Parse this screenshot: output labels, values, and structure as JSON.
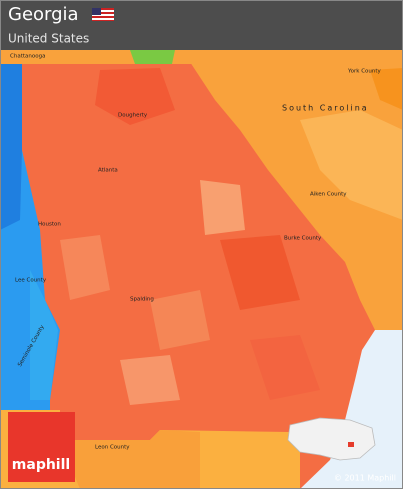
{
  "header": {
    "title": "Georgia",
    "subtitle": "United States"
  },
  "map": {
    "labels": [
      "Chattanooga",
      "South Carolina",
      "York County",
      "Aiken County",
      "Burke County",
      "Atlanta",
      "Houston",
      "Lee County",
      "Spalding",
      "Dougherty",
      "Leon County",
      "Seminole County"
    ]
  },
  "logo": "maphill",
  "copyright": "© 2011 Maphill"
}
